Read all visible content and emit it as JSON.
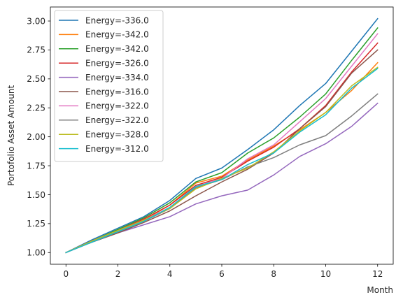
{
  "chart_data": {
    "type": "line",
    "xlabel": "Month",
    "ylabel": "Portofolio Asset Amount",
    "xlim": [
      -0.6,
      12.6
    ],
    "ylim": [
      0.899,
      3.121
    ],
    "xticks": [
      0,
      2,
      4,
      6,
      8,
      10,
      12
    ],
    "yticks": [
      1.0,
      1.25,
      1.5,
      1.75,
      2.0,
      2.25,
      2.5,
      2.75,
      3.0
    ],
    "xtick_labels": [
      "0",
      "2",
      "4",
      "6",
      "8",
      "10",
      "12"
    ],
    "ytick_labels": [
      "1.00",
      "1.25",
      "1.50",
      "1.75",
      "2.00",
      "2.25",
      "2.50",
      "2.75",
      "3.00"
    ],
    "legend_position": "upper-left",
    "x": [
      0,
      1,
      2,
      3,
      4,
      5,
      6,
      7,
      8,
      9,
      10,
      11,
      12
    ],
    "series": [
      {
        "name": "Energy=-336.0",
        "color": "#1f77b4",
        "values": [
          1.0,
          1.11,
          1.21,
          1.31,
          1.45,
          1.64,
          1.73,
          1.89,
          2.06,
          2.27,
          2.46,
          2.74,
          3.02
        ]
      },
      {
        "name": "Energy=-342.0",
        "color": "#ff7f0e",
        "values": [
          1.0,
          1.1,
          1.19,
          1.28,
          1.41,
          1.6,
          1.66,
          1.8,
          1.92,
          2.06,
          2.21,
          2.4,
          2.64
        ]
      },
      {
        "name": "Energy=-342.0",
        "color": "#2ca02c",
        "values": [
          1.0,
          1.1,
          1.2,
          1.3,
          1.43,
          1.61,
          1.69,
          1.86,
          1.99,
          2.17,
          2.37,
          2.66,
          2.94
        ]
      },
      {
        "name": "Energy=-326.0",
        "color": "#d62728",
        "values": [
          1.0,
          1.1,
          1.19,
          1.29,
          1.41,
          1.58,
          1.65,
          1.79,
          1.91,
          2.07,
          2.27,
          2.56,
          2.81
        ]
      },
      {
        "name": "Energy=-334.0",
        "color": "#9467bd",
        "values": [
          1.0,
          1.09,
          1.17,
          1.24,
          1.31,
          1.42,
          1.49,
          1.54,
          1.67,
          1.83,
          1.94,
          2.09,
          2.29
        ]
      },
      {
        "name": "Energy=-316.0",
        "color": "#8c564b",
        "values": [
          1.0,
          1.09,
          1.17,
          1.26,
          1.36,
          1.49,
          1.61,
          1.72,
          1.86,
          2.07,
          2.26,
          2.55,
          2.75
        ]
      },
      {
        "name": "Energy=-322.0",
        "color": "#e377c2",
        "values": [
          1.0,
          1.1,
          1.19,
          1.28,
          1.39,
          1.57,
          1.64,
          1.81,
          1.93,
          2.13,
          2.33,
          2.61,
          2.89
        ]
      },
      {
        "name": "Energy=-322.0",
        "color": "#7f7f7f",
        "values": [
          1.0,
          1.1,
          1.18,
          1.27,
          1.38,
          1.56,
          1.63,
          1.74,
          1.82,
          1.93,
          2.01,
          2.18,
          2.37
        ]
      },
      {
        "name": "Energy=-328.0",
        "color": "#bcbd22",
        "values": [
          1.0,
          1.1,
          1.19,
          1.28,
          1.38,
          1.55,
          1.64,
          1.73,
          1.87,
          2.05,
          2.21,
          2.44,
          2.6
        ]
      },
      {
        "name": "Energy=-312.0",
        "color": "#17becf",
        "values": [
          1.0,
          1.09,
          1.18,
          1.27,
          1.39,
          1.57,
          1.63,
          1.76,
          1.86,
          2.04,
          2.19,
          2.42,
          2.59
        ]
      }
    ]
  }
}
